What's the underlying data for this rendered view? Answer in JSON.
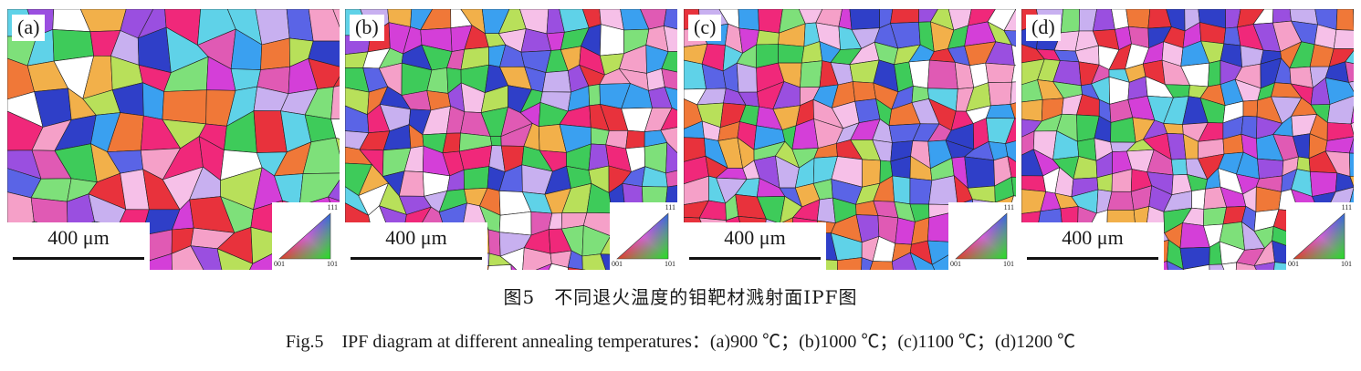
{
  "figure": {
    "panels": [
      {
        "label": "(a)",
        "scale_label": "400 μm"
      },
      {
        "label": "(b)",
        "scale_label": "400 μm"
      },
      {
        "label": "(c)",
        "scale_label": "400 μm"
      },
      {
        "label": "(d)",
        "scale_label": "400 μm"
      }
    ],
    "legend": {
      "top": "111",
      "left": "001",
      "right": "101"
    },
    "caption_cn": "图5　不同退火温度的钼靶材溅射面IPF图",
    "caption_en": "Fig.5　IPF diagram at different annealing temperatures：(a)900 ℃；(b)1000 ℃；(c)1100 ℃；(d)1200 ℃"
  },
  "colors": [
    "#e8323c",
    "#f0287a",
    "#d43fd8",
    "#9a4fe0",
    "#5a64e6",
    "#2f3fc8",
    "#3aa0f0",
    "#5fd2e8",
    "#7ee07a",
    "#3ecb5a",
    "#b8e05a",
    "#f2b04a",
    "#f07838",
    "#f5a0c8",
    "#f6c0e8",
    "#c8b0f0",
    "#ffffff",
    "#e05ab4"
  ]
}
